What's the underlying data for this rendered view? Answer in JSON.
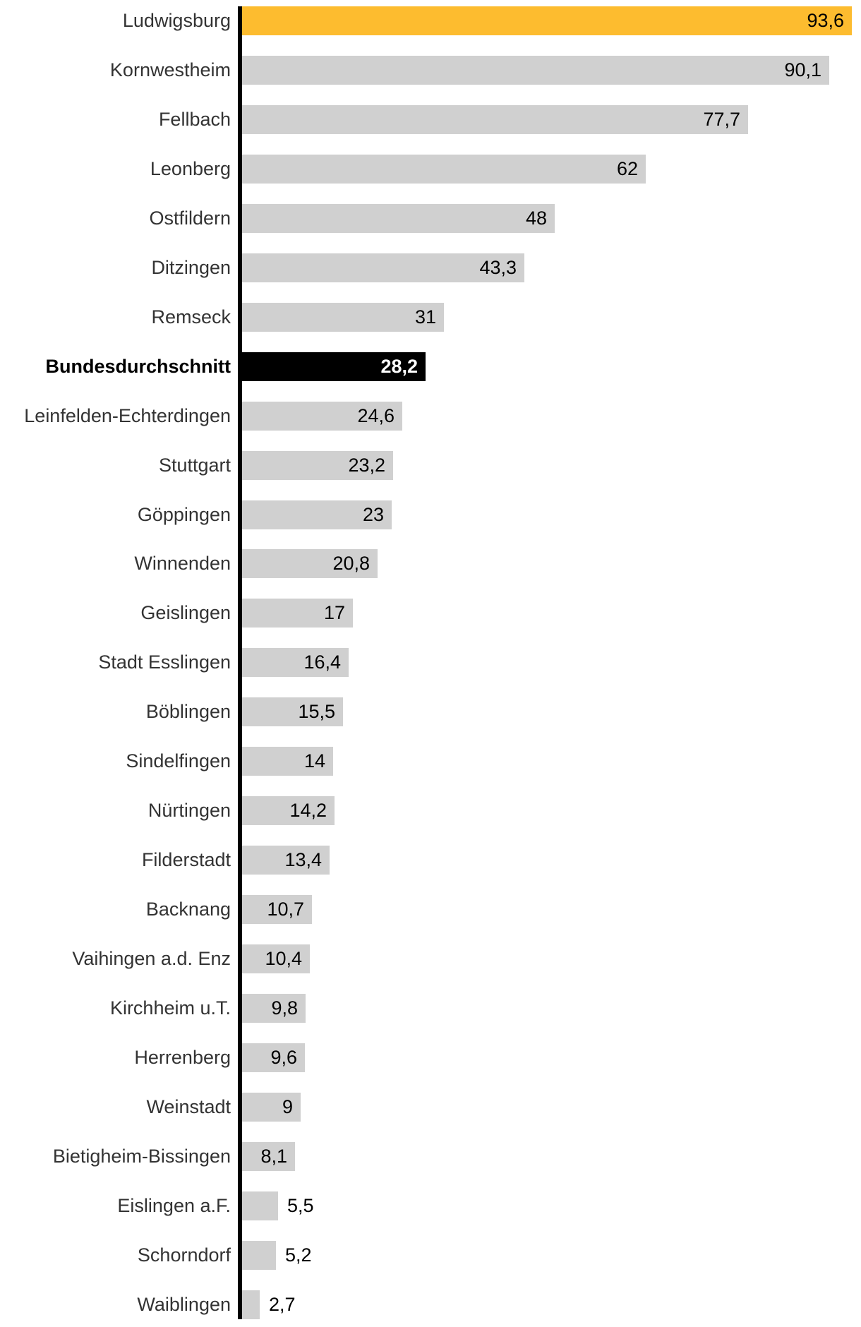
{
  "chart_data": {
    "type": "bar",
    "orientation": "horizontal",
    "title": "",
    "xlabel": "",
    "ylabel": "",
    "xlim": [
      0,
      95
    ],
    "grid": false,
    "legend": false,
    "decimal_separator": ",",
    "colors": {
      "default": "#D0D0D0",
      "highlight": "#FDBC2F",
      "average": "#000000",
      "axis": "#000000",
      "label_text": "#333333",
      "value_text": "#000000",
      "value_text_on_average": "#ffffff"
    },
    "items": [
      {
        "label": "Ludwigsburg",
        "value": 93.6,
        "display": "93,6",
        "style": "highlight",
        "value_position": "inside"
      },
      {
        "label": "Kornwestheim",
        "value": 90.1,
        "display": "90,1",
        "style": "default",
        "value_position": "inside"
      },
      {
        "label": "Fellbach",
        "value": 77.7,
        "display": "77,7",
        "style": "default",
        "value_position": "inside"
      },
      {
        "label": "Leonberg",
        "value": 62,
        "display": "62",
        "style": "default",
        "value_position": "inside"
      },
      {
        "label": "Ostfildern",
        "value": 48,
        "display": "48",
        "style": "default",
        "value_position": "inside"
      },
      {
        "label": "Ditzingen",
        "value": 43.3,
        "display": "43,3",
        "style": "default",
        "value_position": "inside"
      },
      {
        "label": "Remseck",
        "value": 31,
        "display": "31",
        "style": "default",
        "value_position": "inside"
      },
      {
        "label": "Bundesdurchschnitt",
        "value": 28.2,
        "display": "28,2",
        "style": "average",
        "value_position": "inside"
      },
      {
        "label": "Leinfelden-Echterdingen",
        "value": 24.6,
        "display": "24,6",
        "style": "default",
        "value_position": "inside"
      },
      {
        "label": "Stuttgart",
        "value": 23.2,
        "display": "23,2",
        "style": "default",
        "value_position": "inside"
      },
      {
        "label": "Göppingen",
        "value": 23,
        "display": "23",
        "style": "default",
        "value_position": "inside"
      },
      {
        "label": "Winnenden",
        "value": 20.8,
        "display": "20,8",
        "style": "default",
        "value_position": "inside"
      },
      {
        "label": "Geislingen",
        "value": 17,
        "display": "17",
        "style": "default",
        "value_position": "inside"
      },
      {
        "label": "Stadt Esslingen",
        "value": 16.4,
        "display": "16,4",
        "style": "default",
        "value_position": "inside"
      },
      {
        "label": "Böblingen",
        "value": 15.5,
        "display": "15,5",
        "style": "default",
        "value_position": "inside"
      },
      {
        "label": "Sindelfingen",
        "value": 14,
        "display": "14",
        "style": "default",
        "value_position": "inside"
      },
      {
        "label": "Nürtingen",
        "value": 14.2,
        "display": "14,2",
        "style": "default",
        "value_position": "inside"
      },
      {
        "label": "Filderstadt",
        "value": 13.4,
        "display": "13,4",
        "style": "default",
        "value_position": "inside"
      },
      {
        "label": "Backnang",
        "value": 10.7,
        "display": "10,7",
        "style": "default",
        "value_position": "inside"
      },
      {
        "label": "Vaihingen a.d. Enz",
        "value": 10.4,
        "display": "10,4",
        "style": "default",
        "value_position": "inside"
      },
      {
        "label": "Kirchheim u.T.",
        "value": 9.8,
        "display": "9,8",
        "style": "default",
        "value_position": "inside"
      },
      {
        "label": "Herrenberg",
        "value": 9.6,
        "display": "9,6",
        "style": "default",
        "value_position": "inside"
      },
      {
        "label": "Weinstadt",
        "value": 9,
        "display": "9",
        "style": "default",
        "value_position": "inside"
      },
      {
        "label": "Bietigheim-Bissingen",
        "value": 8.1,
        "display": "8,1",
        "style": "default",
        "value_position": "inside"
      },
      {
        "label": "Eislingen a.F.",
        "value": 5.5,
        "display": "5,5",
        "style": "default",
        "value_position": "outside"
      },
      {
        "label": "Schorndorf",
        "value": 5.2,
        "display": "5,2",
        "style": "default",
        "value_position": "outside"
      },
      {
        "label": "Waiblingen",
        "value": 2.7,
        "display": "2,7",
        "style": "default",
        "value_position": "outside"
      }
    ]
  }
}
